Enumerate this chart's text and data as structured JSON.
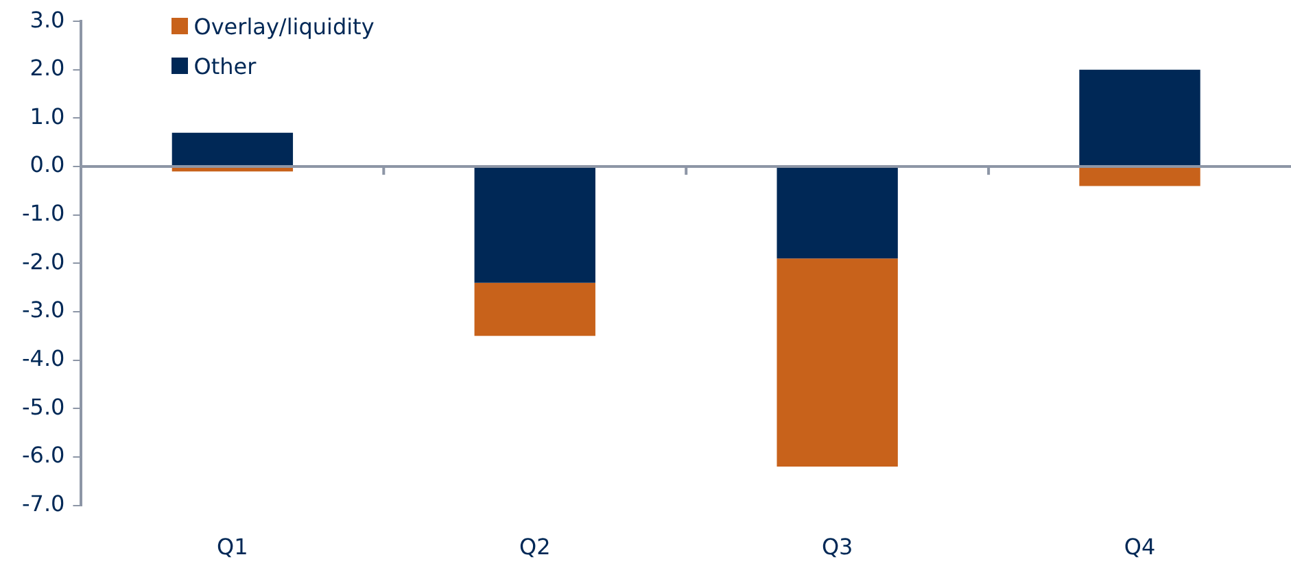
{
  "chart_data": {
    "type": "bar",
    "stacked": true,
    "legend": "top left",
    "categories": [
      "Q1",
      "Q2",
      "Q3",
      "Q4"
    ],
    "series": [
      {
        "name": "Other",
        "color": "#002856",
        "values": [
          0.7,
          -2.4,
          -1.9,
          2.0
        ]
      },
      {
        "name": "Overlay/liquidity",
        "color": "#c8621b",
        "values": [
          -0.1,
          -1.1,
          -4.3,
          -0.4
        ]
      }
    ],
    "ylim": [
      -7,
      3
    ],
    "yticks": [
      {
        "value": 3,
        "label": "3.0"
      },
      {
        "value": 2,
        "label": "2.0"
      },
      {
        "value": 1,
        "label": "1.0"
      },
      {
        "value": 0,
        "label": "0.0"
      },
      {
        "value": -1,
        "label": "-1.0"
      },
      {
        "value": -2,
        "label": "-2.0"
      },
      {
        "value": -3,
        "label": "-3.0"
      },
      {
        "value": -4,
        "label": "-4.0"
      },
      {
        "value": -5,
        "label": "-5.0"
      },
      {
        "value": -6,
        "label": "-6.0"
      },
      {
        "value": -7,
        "label": "-7.0"
      }
    ]
  }
}
